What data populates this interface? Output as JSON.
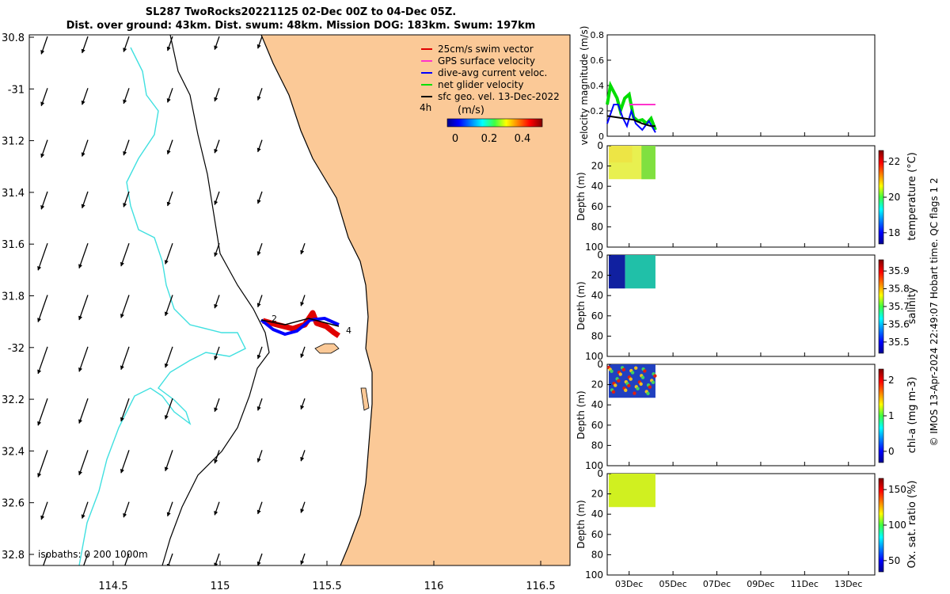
{
  "header": {
    "title_line1": "SL287 TwoRocks20221125 02-Dec 00Z to 04-Dec 05Z.",
    "title_line2": "Dist. over ground: 43km. Dist. swum: 48km. Mission DOG: 183km. Swum: 197km"
  },
  "credit": "© IMOS 13-Apr-2024 22:49:07 Hobart time. QC flags 1  2",
  "map": {
    "lon_ticks": [
      "114.5",
      "115",
      "115.5",
      "116",
      "116.5"
    ],
    "lat_ticks": [
      "30.8",
      "-31",
      "31.2",
      "31.4",
      "31.6",
      "31.8",
      "-32",
      "32.2",
      "32.4",
      "32.6",
      "32.8"
    ],
    "isobath_label": "isobaths: 0   200  1000m",
    "time_mark_start": "4h",
    "track_label_start": "2",
    "track_label_end": "4",
    "legend": [
      {
        "label": "25cm/s swim vector",
        "color": "#e00000"
      },
      {
        "label": "GPS surface velocity",
        "color": "#ff33cc"
      },
      {
        "label": "dive-avg current veloc.",
        "color": "#0000ff"
      },
      {
        "label": "net glider velocity",
        "color": "#00e000"
      },
      {
        "label": "sfc geo. vel. 13-Dec-2022",
        "color": "#000000"
      }
    ],
    "colorbar_title": "(m/s)",
    "colorbar_ticks": [
      "0",
      "0.2",
      "0.4"
    ],
    "colors": {
      "land": "#fbc997",
      "isobath_200": "#000000",
      "isobath_1000": "#40e0e0"
    }
  },
  "chart_data": [
    {
      "type": "line",
      "title": "",
      "xlabel": "",
      "ylabel": "velocity magnitude (m/s)",
      "ylim": [
        0,
        0.8
      ],
      "yticks": [
        "0",
        "0.2",
        "0.4",
        "0.6",
        "0.8"
      ],
      "xticks": [
        "03Dec",
        "05Dec",
        "07Dec",
        "09Dec",
        "11Dec",
        "13Dec"
      ],
      "series": [
        {
          "color": "#00dd00",
          "x": [
            2.0,
            2.15,
            2.3,
            2.45,
            2.6,
            2.8,
            3.0,
            3.2,
            3.4,
            3.6,
            3.8,
            4.0,
            4.2
          ],
          "y": [
            0.25,
            0.4,
            0.35,
            0.3,
            0.2,
            0.3,
            0.33,
            0.15,
            0.12,
            0.13,
            0.1,
            0.14,
            0.05
          ]
        },
        {
          "color": "#0000ff",
          "x": [
            2.0,
            2.3,
            2.5,
            2.7,
            2.9,
            3.1,
            3.3,
            3.6,
            3.9,
            4.2
          ],
          "y": [
            0.1,
            0.25,
            0.25,
            0.15,
            0.08,
            0.2,
            0.1,
            0.05,
            0.12,
            0.03
          ]
        },
        {
          "color": "#ff33cc",
          "x": [
            3.0,
            3.4,
            3.8,
            4.2
          ],
          "y": [
            0.25,
            0.25,
            0.25,
            0.25
          ]
        },
        {
          "color": "#000000",
          "x": [
            2.0,
            2.4,
            2.8,
            3.2,
            3.6,
            4.0,
            4.2
          ],
          "y": [
            0.16,
            0.15,
            0.14,
            0.13,
            0.1,
            0.08,
            0.08
          ]
        }
      ]
    },
    {
      "type": "heatmap",
      "ylabel": "Depth (m)",
      "yticks": [
        "0",
        "20",
        "40",
        "60",
        "80",
        "100"
      ],
      "colorbar_label": "temperature (°C)",
      "colorbar_ticks": [
        "18",
        "20",
        "22"
      ]
    },
    {
      "type": "heatmap",
      "ylabel": "Depth (m)",
      "yticks": [
        "0",
        "20",
        "40",
        "60",
        "80",
        "100"
      ],
      "colorbar_label": "salinity",
      "colorbar_ticks": [
        "35.5",
        "35.6",
        "35.7",
        "35.8",
        "35.9"
      ]
    },
    {
      "type": "heatmap",
      "ylabel": "Depth (m)",
      "yticks": [
        "0",
        "20",
        "40",
        "60",
        "80",
        "100"
      ],
      "colorbar_label": "chl-a (mg m-3)",
      "colorbar_ticks": [
        "0",
        "1",
        "2"
      ]
    },
    {
      "type": "heatmap",
      "ylabel": "Depth (m)",
      "yticks": [
        "0",
        "20",
        "40",
        "60",
        "80",
        "100"
      ],
      "colorbar_label": "Ox. sat. ratio (%)",
      "colorbar_ticks": [
        "50",
        "100",
        "150"
      ]
    }
  ]
}
